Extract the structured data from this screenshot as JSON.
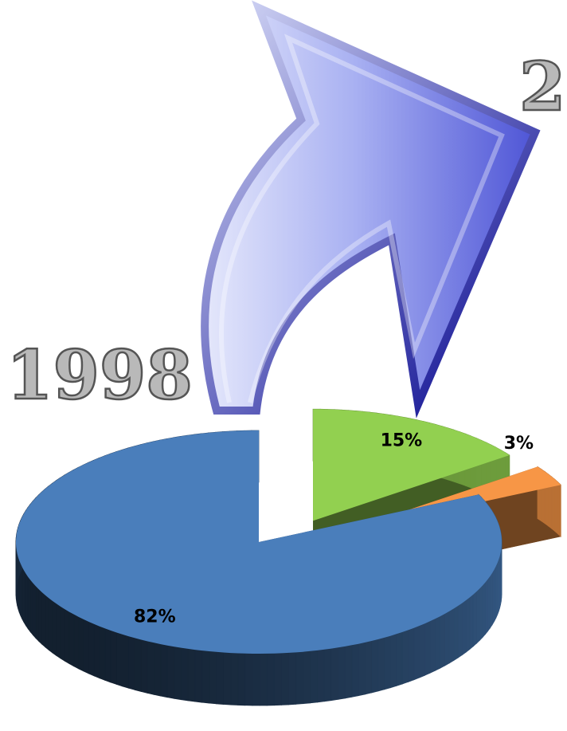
{
  "chart_data": {
    "type": "pie",
    "values": [
      15,
      3,
      82
    ],
    "value_labels": [
      "15%",
      "3%",
      "82%"
    ],
    "colors": [
      "#92d050",
      "#f79646",
      "#4a7ebb"
    ],
    "annotations": [
      "1998",
      "2"
    ]
  }
}
